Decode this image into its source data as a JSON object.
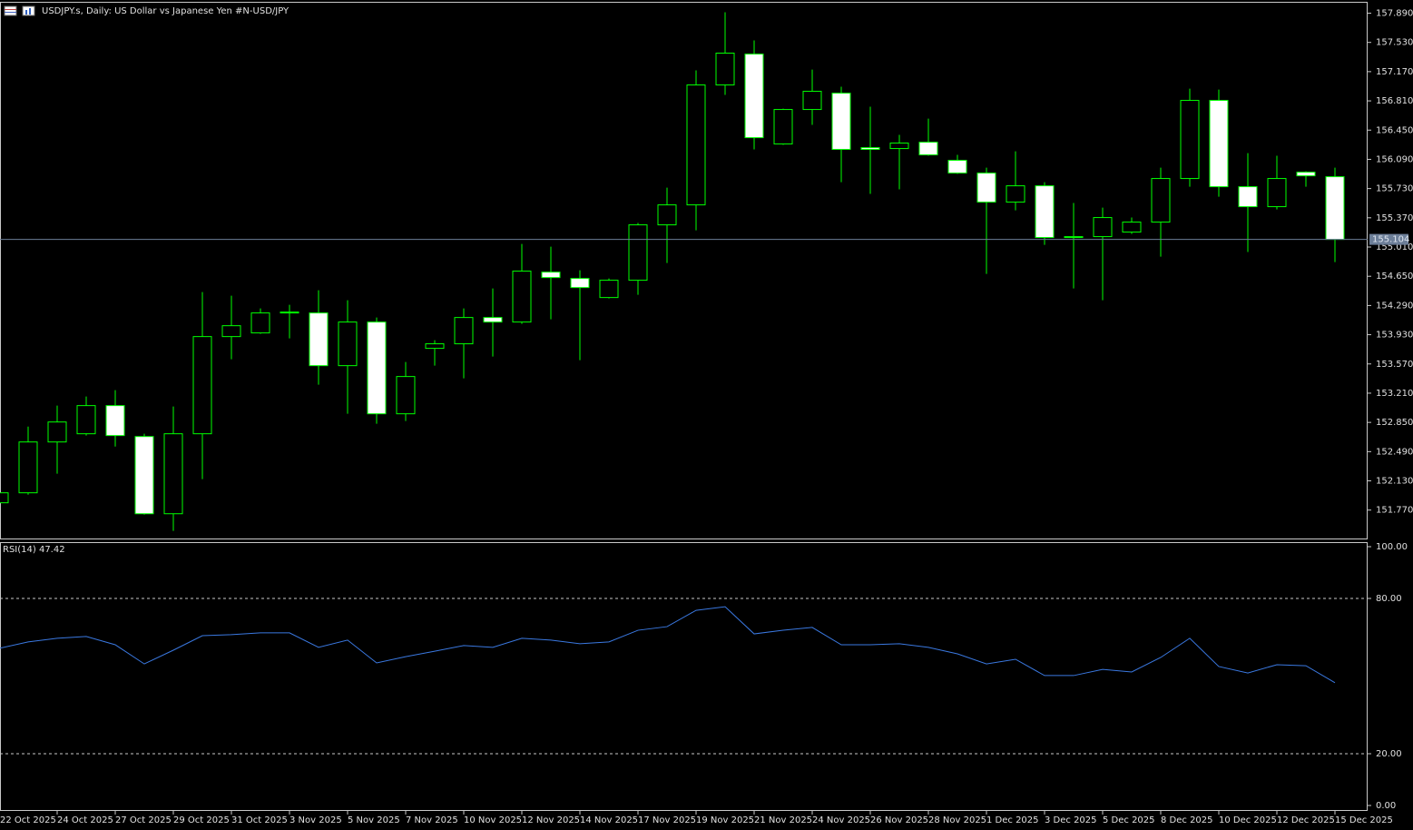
{
  "chart_data": [
    {
      "type": "candlestick",
      "title": "USDJPY.s, Daily:  US Dollar vs  Japanese Yen #N-USD/JPY",
      "categories": [
        "22 Oct 2025",
        null,
        "24 Oct 2025",
        null,
        "27 Oct 2025",
        null,
        "29 Oct 2025",
        null,
        "31 Oct 2025",
        null,
        "3 Nov 2025",
        null,
        "5 Nov 2025",
        null,
        "7 Nov 2025",
        null,
        "10 Nov 2025",
        null,
        "12 Nov 2025",
        null,
        "14 Nov 2025",
        null,
        "17 Nov 2025",
        null,
        "19 Nov 2025",
        null,
        "21 Nov 2025",
        null,
        "24 Nov 2025",
        null,
        "26 Nov 2025",
        null,
        "28 Nov 2025",
        null,
        "1 Dec 2025",
        null,
        "3 Dec 2025",
        null,
        "5 Dec 2025",
        null,
        "8 Dec 2025",
        null,
        "10 Dec 2025",
        null,
        "12 Dec 2025",
        null,
        "15 Dec 2025"
      ],
      "open": [
        151.86,
        151.983,
        152.609,
        152.71,
        153.057,
        152.676,
        151.725,
        152.71,
        153.907,
        153.952,
        154.198,
        154.198,
        153.549,
        154.086,
        152.956,
        153.762,
        153.818,
        154.142,
        154.086,
        154.701,
        154.623,
        154.388,
        154.601,
        155.283,
        155.529,
        157.006,
        157.387,
        156.279,
        156.704,
        156.905,
        156.234,
        156.223,
        156.301,
        156.078,
        155.921,
        155.563,
        155.764,
        155.127,
        155.138,
        155.194,
        155.317,
        155.854,
        156.816,
        155.753,
        155.507,
        155.932,
        155.876
      ],
      "high": [
        152.016,
        152.799,
        153.057,
        153.169,
        153.247,
        152.71,
        153.046,
        154.455,
        154.41,
        154.254,
        154.299,
        154.478,
        154.355,
        154.142,
        153.594,
        153.862,
        154.254,
        154.5,
        155.048,
        155.015,
        154.724,
        154.623,
        155.306,
        155.742,
        157.185,
        157.901,
        157.554,
        156.715,
        157.196,
        156.984,
        156.738,
        156.391,
        156.592,
        156.145,
        155.988,
        156.189,
        155.809,
        155.552,
        155.496,
        155.373,
        155.988,
        156.961,
        156.95,
        156.167,
        156.134,
        155.943,
        155.988
      ],
      "low": [
        151.837,
        151.96,
        152.218,
        152.688,
        152.553,
        151.714,
        151.513,
        152.151,
        153.627,
        153.941,
        153.885,
        153.314,
        152.956,
        152.833,
        152.867,
        153.549,
        153.392,
        153.661,
        154.064,
        154.12,
        153.616,
        154.377,
        154.422,
        154.813,
        155.216,
        156.883,
        156.212,
        156.268,
        156.514,
        155.809,
        155.664,
        155.72,
        156.134,
        155.91,
        154.679,
        155.462,
        155.037,
        154.5,
        154.355,
        155.171,
        154.892,
        155.753,
        155.63,
        154.948,
        155.473,
        155.753,
        154.824
      ],
      "close": [
        151.983,
        152.609,
        152.855,
        153.057,
        152.688,
        151.725,
        152.71,
        153.907,
        154.041,
        154.198,
        154.209,
        153.549,
        154.086,
        152.956,
        153.415,
        153.818,
        154.142,
        154.086,
        154.713,
        154.634,
        154.511,
        154.601,
        155.283,
        155.529,
        157.006,
        157.398,
        156.357,
        156.704,
        156.928,
        156.212,
        156.212,
        156.29,
        156.145,
        155.921,
        155.563,
        155.764,
        155.127,
        155.138,
        155.373,
        155.317,
        155.854,
        156.816,
        155.753,
        155.507,
        155.854,
        155.887,
        155.104
      ],
      "up_color": "#00ff00",
      "down_color": "#ffffff",
      "outline_color": "#00ff00",
      "ylim": [
        151.42,
        158.03
      ],
      "yticks": [
        {
          "value": 157.89,
          "label": "157.890"
        },
        {
          "value": 157.53,
          "label": "157.530"
        },
        {
          "value": 157.17,
          "label": "157.170"
        },
        {
          "value": 156.81,
          "label": "156.810"
        },
        {
          "value": 156.45,
          "label": "156.450"
        },
        {
          "value": 156.09,
          "label": "156.090"
        },
        {
          "value": 155.73,
          "label": "155.730"
        },
        {
          "value": 155.37,
          "label": "155.370"
        },
        {
          "value": 155.01,
          "label": "155.010"
        },
        {
          "value": 154.65,
          "label": "154.650"
        },
        {
          "value": 154.29,
          "label": "154.290"
        },
        {
          "value": 153.93,
          "label": "153.930"
        },
        {
          "value": 153.57,
          "label": "153.570"
        },
        {
          "value": 153.21,
          "label": "153.210"
        },
        {
          "value": 152.85,
          "label": "152.850"
        },
        {
          "value": 152.49,
          "label": "152.490"
        },
        {
          "value": 152.13,
          "label": "152.130"
        },
        {
          "value": 151.77,
          "label": "151.770"
        }
      ],
      "current_price": {
        "value": 155.104,
        "label": "155.104"
      }
    },
    {
      "type": "line",
      "title": "RSI(14) 47.42",
      "color": "#3a78e0",
      "values": [
        60.7,
        63.2,
        64.6,
        65.3,
        62.1,
        54.7,
        60.0,
        65.6,
        66.0,
        66.7,
        66.7,
        61.1,
        63.9,
        55.1,
        57.5,
        59.6,
        61.8,
        61.1,
        64.6,
        63.9,
        62.5,
        63.2,
        67.7,
        69.1,
        75.4,
        76.8,
        66.3,
        67.7,
        68.8,
        62.1,
        62.1,
        62.5,
        61.1,
        58.6,
        54.7,
        56.5,
        50.2,
        50.2,
        52.6,
        51.6,
        57.2,
        64.6,
        53.7,
        51.2,
        54.4,
        54.0,
        47.42
      ],
      "ylim": [
        0,
        100
      ],
      "yticks": [
        {
          "value": 100,
          "label": "100.00"
        },
        {
          "value": 80,
          "label": "80.00"
        },
        {
          "value": 20,
          "label": "20.00"
        },
        {
          "value": 0,
          "label": "0.00"
        }
      ]
    }
  ]
}
